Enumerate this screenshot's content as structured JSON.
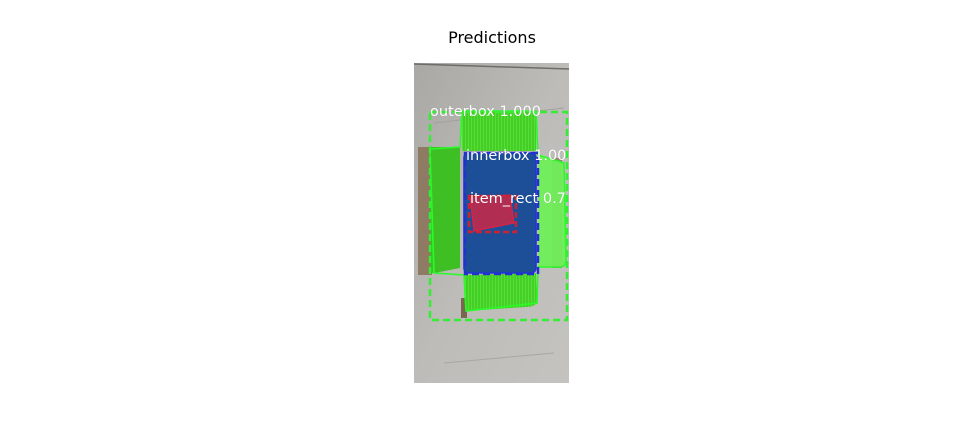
{
  "title": "Predictions",
  "detections": [
    {
      "label": "outerbox 1.000",
      "color": "#33ee33"
    },
    {
      "label": "innerbox 1.00",
      "color": "#2233cc"
    },
    {
      "label": "item_rect 0.7",
      "color": "#cc2233"
    }
  ],
  "colors": {
    "concrete": "#b9b9b6",
    "cardboard": "#8a6f55",
    "outer_mask": "#33cc1a",
    "outer_mask_light": "#66ee55",
    "inner_mask": "#1a4f99",
    "item_mask": "#c42a4a"
  }
}
